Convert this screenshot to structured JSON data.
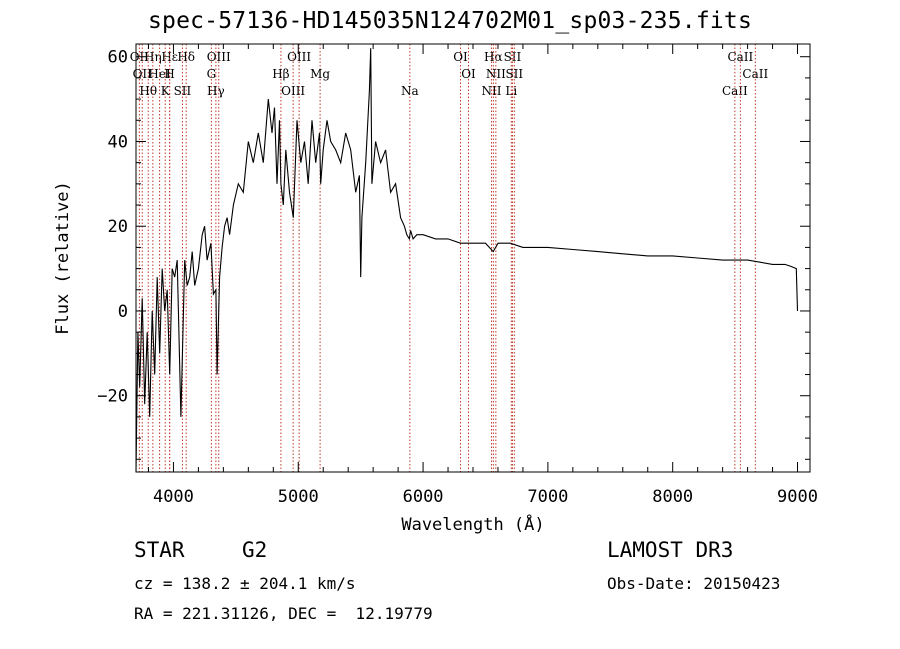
{
  "title": "spec-57136-HD145035N124702M01_sp03-235.fits",
  "info": {
    "class": "STAR",
    "subclass": "G2",
    "survey": "LAMOST DR3",
    "cz": "cz = 138.2 ± 204.1 km/s",
    "obs_date": "Obs-Date: 20150423",
    "coords": "RA = 221.31126, DEC =  12.19779"
  },
  "chart_data": {
    "type": "line",
    "title": "spec-57136-HD145035N124702M01_sp03-235.fits",
    "xlabel": "Wavelength (Å)",
    "ylabel": "Flux (relative)",
    "xlim": [
      3700,
      9100
    ],
    "ylim": [
      -38,
      63
    ],
    "xticks": [
      4000,
      5000,
      6000,
      7000,
      8000,
      9000
    ],
    "yticks": [
      -20,
      0,
      20,
      40,
      60
    ],
    "ytick_labels": [
      "−20",
      "0",
      "20",
      "40",
      "60"
    ],
    "series": [
      {
        "name": "spectrum",
        "x": [
          3700,
          3715,
          3730,
          3750,
          3770,
          3790,
          3810,
          3830,
          3850,
          3870,
          3890,
          3910,
          3930,
          3950,
          3970,
          3990,
          4010,
          4030,
          4060,
          4090,
          4110,
          4130,
          4150,
          4170,
          4200,
          4230,
          4250,
          4270,
          4300,
          4320,
          4340,
          4350,
          4370,
          4390,
          4410,
          4430,
          4450,
          4480,
          4520,
          4560,
          4600,
          4640,
          4680,
          4720,
          4760,
          4790,
          4810,
          4830,
          4850,
          4861,
          4880,
          4900,
          4930,
          4960,
          4990,
          5020,
          5050,
          5080,
          5110,
          5140,
          5170,
          5180,
          5200,
          5230,
          5260,
          5300,
          5340,
          5380,
          5420,
          5460,
          5490,
          5500,
          5510,
          5540,
          5570,
          5580,
          5590,
          5620,
          5660,
          5700,
          5740,
          5780,
          5820,
          5850,
          5870,
          5890,
          5900,
          5920,
          5950,
          6000,
          6100,
          6200,
          6300,
          6400,
          6500,
          6562,
          6600,
          6700,
          6800,
          6900,
          7000,
          7200,
          7400,
          7600,
          7800,
          8000,
          8200,
          8400,
          8500,
          8540,
          8600,
          8700,
          8800,
          8900,
          8950,
          8990,
          9000
        ],
        "values": [
          -38,
          -5,
          -18,
          3,
          -22,
          -5,
          -25,
          0,
          -15,
          8,
          -10,
          10,
          0,
          5,
          -15,
          10,
          8,
          12,
          -25,
          12,
          6,
          8,
          14,
          6,
          10,
          18,
          20,
          12,
          16,
          4,
          5,
          -15,
          8,
          15,
          20,
          22,
          18,
          25,
          30,
          28,
          40,
          35,
          42,
          35,
          50,
          42,
          48,
          30,
          45,
          30,
          25,
          38,
          28,
          22,
          45,
          35,
          40,
          30,
          45,
          35,
          42,
          30,
          38,
          45,
          40,
          38,
          35,
          42,
          38,
          28,
          32,
          8,
          22,
          35,
          52,
          62,
          30,
          40,
          35,
          38,
          28,
          30,
          22,
          20,
          18,
          17,
          19,
          17,
          18,
          18,
          17,
          17,
          16,
          16,
          16,
          14,
          16,
          16,
          15,
          15,
          15,
          14.5,
          14,
          13.5,
          13,
          13,
          12.5,
          12,
          12,
          12,
          12,
          11.5,
          11,
          11,
          10.5,
          10,
          0
        ]
      }
    ],
    "lines": [
      {
        "wl": 3727,
        "label": "OII"
      },
      {
        "wl": 3750,
        "label": "OII"
      },
      {
        "wl": 3798,
        "label": "Hθ"
      },
      {
        "wl": 3835,
        "label": "Hη"
      },
      {
        "wl": 3889,
        "label": "HeI"
      },
      {
        "wl": 3934,
        "label": "K"
      },
      {
        "wl": 3970,
        "label": "Hε"
      },
      {
        "wl": 3969,
        "label": "H"
      },
      {
        "wl": 4072,
        "label": "SII"
      },
      {
        "wl": 4102,
        "label": "Hδ"
      },
      {
        "wl": 4304,
        "label": "G"
      },
      {
        "wl": 4340,
        "label": "Hγ"
      },
      {
        "wl": 4363,
        "label": "OIII"
      },
      {
        "wl": 4861,
        "label": "Hβ"
      },
      {
        "wl": 4959,
        "label": "OIII"
      },
      {
        "wl": 5007,
        "label": "OIII"
      },
      {
        "wl": 5175,
        "label": "Mg"
      },
      {
        "wl": 5894,
        "label": "Na"
      },
      {
        "wl": 6300,
        "label": "OI"
      },
      {
        "wl": 6364,
        "label": "OI"
      },
      {
        "wl": 6548,
        "label": "NII"
      },
      {
        "wl": 6563,
        "label": "Hα"
      },
      {
        "wl": 6583,
        "label": "NII"
      },
      {
        "wl": 6707,
        "label": "Li"
      },
      {
        "wl": 6716,
        "label": "SII"
      },
      {
        "wl": 6731,
        "label": "SII"
      },
      {
        "wl": 8498,
        "label": "CaII"
      },
      {
        "wl": 8542,
        "label": "CaII"
      },
      {
        "wl": 8662,
        "label": "CaII"
      }
    ],
    "line_color": "#c0392b",
    "spectrum_color": "#000000"
  }
}
